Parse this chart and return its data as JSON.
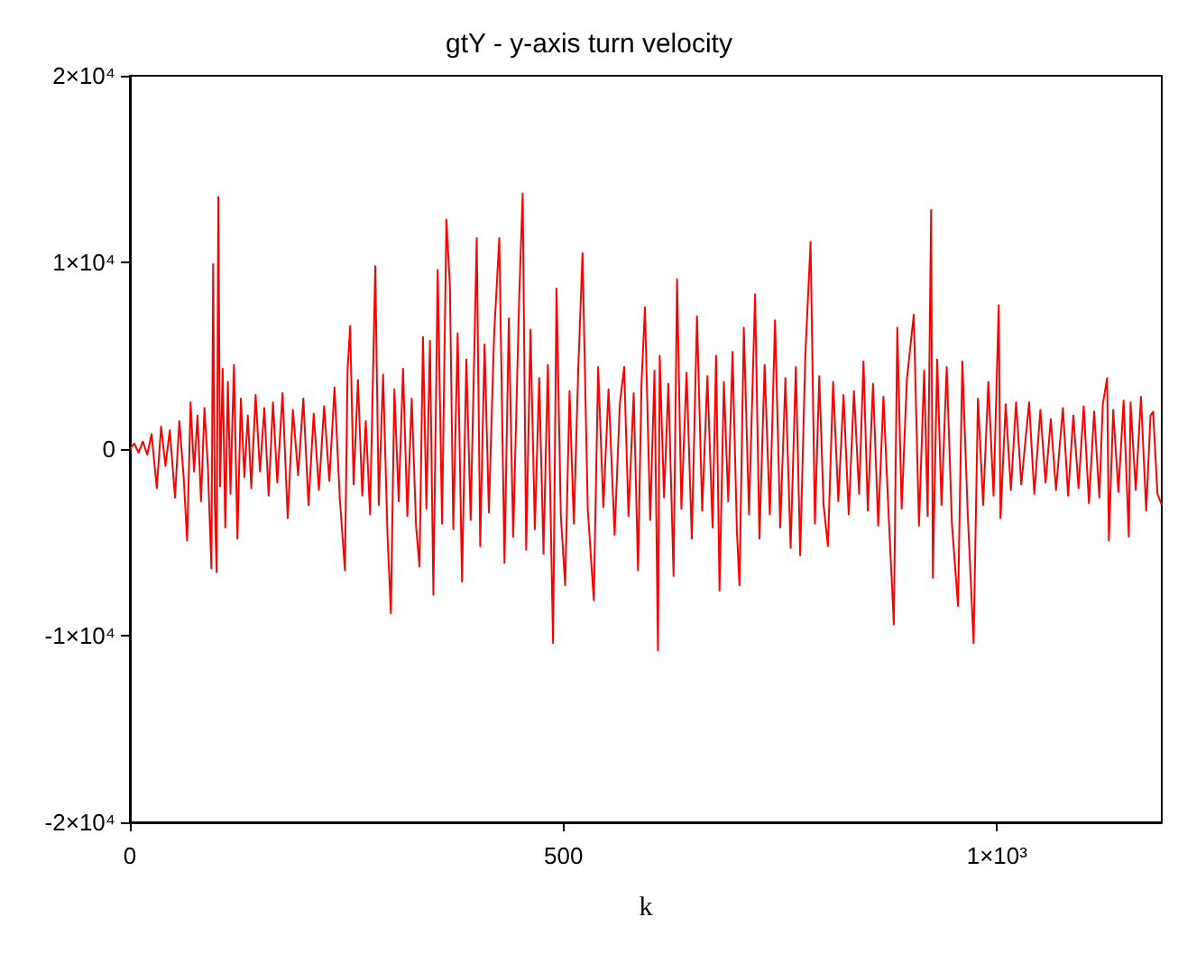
{
  "chart_data": {
    "type": "line",
    "title": "gtY - y-axis turn velocity",
    "xlabel": "k",
    "x": [
      0,
      5,
      10,
      15,
      20,
      25,
      31,
      36,
      41,
      46,
      52,
      57,
      62,
      66,
      70,
      74,
      78,
      82,
      86,
      90,
      94,
      96,
      98,
      100,
      102,
      104,
      107,
      110,
      113,
      116,
      120,
      124,
      128,
      132,
      136,
      140,
      145,
      150,
      155,
      160,
      165,
      170,
      176,
      182,
      188,
      194,
      200,
      206,
      212,
      218,
      224,
      230,
      236,
      242,
      248,
      251,
      254,
      258,
      263,
      268,
      272,
      277,
      283,
      287,
      292,
      297,
      301,
      305,
      310,
      315,
      320,
      325,
      330,
      334,
      338,
      342,
      346,
      350,
      355,
      360,
      365,
      369,
      373,
      378,
      383,
      388,
      393,
      400,
      404,
      409,
      414,
      420,
      426,
      432,
      437,
      442,
      449,
      453,
      457,
      462,
      467,
      472,
      477,
      482,
      488,
      492,
      497,
      502,
      507,
      512,
      517,
      522,
      528,
      535,
      540,
      546,
      552,
      559,
      565,
      570,
      575,
      581,
      586,
      590,
      594,
      600,
      605,
      609,
      611,
      616,
      621,
      627,
      631,
      636,
      642,
      648,
      654,
      660,
      666,
      672,
      676,
      680,
      685,
      690,
      695,
      700,
      703,
      708,
      714,
      721,
      726,
      732,
      738,
      744,
      750,
      756,
      762,
      768,
      773,
      779,
      785,
      790,
      795,
      800,
      805,
      811,
      817,
      823,
      829,
      835,
      841,
      846,
      851,
      857,
      863,
      869,
      875,
      881,
      885,
      890,
      896,
      904,
      910,
      916,
      920,
      924,
      926,
      931,
      936,
      942,
      948,
      955,
      960,
      966,
      973,
      978,
      984,
      990,
      996,
      1002,
      1004,
      1010,
      1016,
      1022,
      1028,
      1037,
      1043,
      1050,
      1056,
      1062,
      1068,
      1076,
      1082,
      1088,
      1094,
      1100,
      1106,
      1112,
      1118,
      1122,
      1127,
      1129,
      1134,
      1140,
      1146,
      1152,
      1154,
      1160,
      1166,
      1172,
      1177,
      1180,
      1185,
      1190
    ],
    "series": [
      {
        "color": "#ff0000",
        "values": [
          0,
          300,
          -200,
          400,
          -300,
          800,
          -2100,
          1200,
          -900,
          1000,
          -2600,
          1500,
          -1500,
          -4900,
          2500,
          -1200,
          1800,
          -2800,
          2200,
          -1000,
          -6400,
          9900,
          -3000,
          -6600,
          13500,
          -2000,
          4300,
          -4200,
          3600,
          -2400,
          4500,
          -4800,
          2700,
          -1500,
          1800,
          -2100,
          2900,
          -1200,
          2200,
          -2500,
          2500,
          -1800,
          3000,
          -3700,
          2100,
          -1400,
          2700,
          -3000,
          1900,
          -2200,
          2300,
          -1700,
          3300,
          -2600,
          -6500,
          4200,
          6600,
          -1900,
          3700,
          -2500,
          1500,
          -3500,
          9800,
          -3000,
          4000,
          -4500,
          -8800,
          3200,
          -2800,
          4300,
          -3600,
          2700,
          -4100,
          -6300,
          6000,
          -3200,
          5800,
          -7800,
          9600,
          -4000,
          12300,
          8800,
          -4300,
          6200,
          -7100,
          4800,
          -3800,
          11300,
          -5200,
          5600,
          -3400,
          6100,
          11300,
          -6100,
          7000,
          -4700,
          8200,
          13700,
          -5400,
          6400,
          -4300,
          3800,
          -5600,
          4500,
          -10400,
          8600,
          -3600,
          -7300,
          3100,
          -4000,
          4200,
          10500,
          -3200,
          -8100,
          4400,
          -3100,
          3200,
          -4600,
          2400,
          4400,
          -3600,
          3000,
          -6500,
          3500,
          7600,
          -3800,
          4200,
          -10800,
          5000,
          -2600,
          3500,
          -6800,
          9100,
          -3200,
          4100,
          -4800,
          7100,
          -3300,
          3900,
          -4200,
          5000,
          -7600,
          3600,
          -2800,
          5200,
          -4400,
          -7300,
          6500,
          -3500,
          8300,
          -4800,
          4500,
          -3500,
          6900,
          -4200,
          3800,
          -5300,
          4400,
          -5700,
          5100,
          11100,
          -4000,
          3900,
          -3000,
          -5200,
          3600,
          -2800,
          2900,
          -3500,
          3100,
          -2400,
          4700,
          -3300,
          3500,
          -4100,
          2800,
          -3500,
          -9400,
          6500,
          -3200,
          3700,
          7200,
          -4100,
          4200,
          -3600,
          12800,
          -6900,
          4800,
          -3000,
          4400,
          -4000,
          -8400,
          4700,
          -3200,
          -10400,
          2700,
          -3000,
          3600,
          -2500,
          7700,
          -3700,
          2400,
          -2200,
          2500,
          -1900,
          2500,
          -2400,
          2100,
          -1800,
          1600,
          -2200,
          2200,
          -2500,
          1800,
          -2100,
          2300,
          -2900,
          2000,
          -2600,
          2400,
          3800,
          -4900,
          2100,
          -2300,
          2600,
          -4700,
          2500,
          -2200,
          2800,
          -3300,
          1800,
          2000,
          -2400,
          -3000
        ]
      }
    ],
    "xlim": [
      0,
      1190
    ],
    "xticks": [
      0,
      500,
      {
        "value": 1000,
        "label": "1×10³"
      }
    ],
    "ylim": [
      -20000,
      20000
    ],
    "yticks": [
      {
        "value": -20000,
        "label": "-2×10⁴"
      },
      {
        "value": -10000,
        "label": "-1×10⁴"
      },
      0,
      {
        "value": 10000,
        "label": "1×10⁴"
      },
      {
        "value": 20000,
        "label": "2×10⁴"
      }
    ]
  }
}
